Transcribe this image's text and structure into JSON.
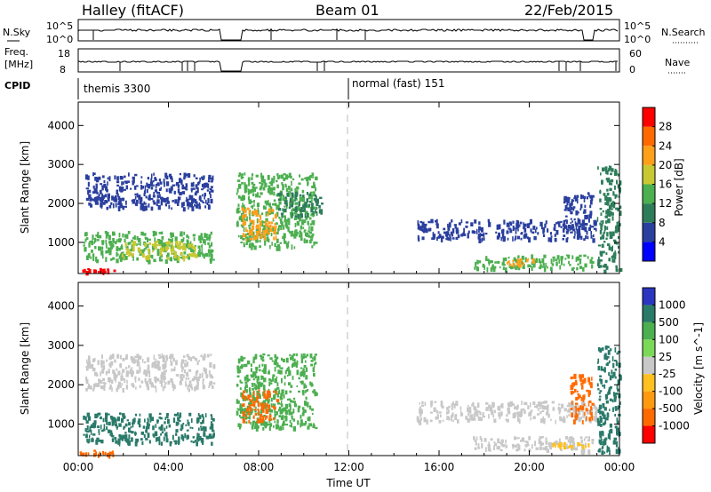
{
  "figure": {
    "station": "Halley (fitACF)",
    "beam": "Beam 01",
    "date": "22/Feb/2015",
    "time_label": "Time UT"
  },
  "header_panels": {
    "nsky": {
      "left_label": "N.Sky",
      "ticks": [
        "10^5",
        "10^0"
      ],
      "right_label": "N.Search"
    },
    "freq": {
      "left_label_line1": "Freq.",
      "left_label_line2": "[MHz]",
      "left_ticks": [
        "18",
        "8"
      ],
      "right_ticks": [
        "60",
        "0"
      ],
      "right_label": "Nave"
    },
    "cpid": {
      "label": "CPID",
      "entries": [
        {
          "text": "themis 3300"
        },
        {
          "text": "normal (fast) 151"
        }
      ]
    }
  },
  "chart_data": [
    {
      "type": "heatmap",
      "title": "",
      "xlabel": "Time UT",
      "ylabel": "Slant Range [km]",
      "x_ticks": [
        "00:00",
        "04:00",
        "08:00",
        "12:00",
        "16:00",
        "20:00",
        "00:00"
      ],
      "x_range_hours": [
        0,
        24
      ],
      "y_ticks": [
        1000,
        2000,
        3000,
        4000
      ],
      "ylim": [
        200,
        4600
      ],
      "colorbar": {
        "label": "Power [dB]",
        "ticks": [
          "4",
          "8",
          "12",
          "16",
          "20",
          "24",
          "28"
        ],
        "range": [
          0,
          32
        ],
        "colors": [
          "#0000ff",
          "#2a3f9e",
          "#2e7d5a",
          "#4caf50",
          "#c8c832",
          "#ff9f1a",
          "#ff6a00",
          "#ff0000"
        ]
      },
      "regions": [
        {
          "t": [
            0.0,
            1.6
          ],
          "r": [
            250,
            350
          ],
          "value": 30
        },
        {
          "t": [
            0.2,
            6.0
          ],
          "r": [
            550,
            1300
          ],
          "value": 12
        },
        {
          "t": [
            1.8,
            5.2
          ],
          "r": [
            620,
            1050
          ],
          "value": 18
        },
        {
          "t": [
            0.3,
            6.0
          ],
          "r": [
            1900,
            2800
          ],
          "value": 5
        },
        {
          "t": [
            7.0,
            10.5
          ],
          "r": [
            900,
            2800
          ],
          "value": 14
        },
        {
          "t": [
            7.2,
            8.8
          ],
          "r": [
            1100,
            1900
          ],
          "value": 20
        },
        {
          "t": [
            8.8,
            10.8
          ],
          "r": [
            1700,
            2300
          ],
          "value": 10
        },
        {
          "t": [
            15.0,
            23.0
          ],
          "r": [
            1100,
            1600
          ],
          "value": 5
        },
        {
          "t": [
            17.5,
            22.8
          ],
          "r": [
            350,
            700
          ],
          "value": 13
        },
        {
          "t": [
            19.0,
            20.5
          ],
          "r": [
            450,
            600
          ],
          "value": 20
        },
        {
          "t": [
            21.5,
            22.8
          ],
          "r": [
            1400,
            2300
          ],
          "value": 6
        },
        {
          "t": [
            23.0,
            24.0
          ],
          "r": [
            300,
            3000
          ],
          "value": 8
        }
      ]
    },
    {
      "type": "heatmap",
      "title": "",
      "xlabel": "Time UT",
      "ylabel": "Slant Range [km]",
      "x_ticks": [
        "00:00",
        "04:00",
        "08:00",
        "12:00",
        "16:00",
        "20:00",
        "00:00"
      ],
      "x_range_hours": [
        0,
        24
      ],
      "y_ticks": [
        1000,
        2000,
        3000,
        4000
      ],
      "ylim": [
        200,
        4600
      ],
      "colorbar": {
        "label": "Velocity [m s^-1]",
        "ticks": [
          "1000",
          "500",
          "100",
          "25",
          "-25",
          "-100",
          "-500",
          "-1000"
        ],
        "colors": [
          "#2b35c0",
          "#2a7a6a",
          "#4caf50",
          "#7cd957",
          "#c8c8c8",
          "#ffc020",
          "#ff9a10",
          "#ff6a00",
          "#ff0000"
        ]
      },
      "regions": [
        {
          "t": [
            0.0,
            1.6
          ],
          "r": [
            250,
            350
          ],
          "class": "-500"
        },
        {
          "t": [
            0.2,
            6.0
          ],
          "r": [
            550,
            1300
          ],
          "class": "500"
        },
        {
          "t": [
            0.3,
            6.0
          ],
          "r": [
            1900,
            2800
          ],
          "class": "25"
        },
        {
          "t": [
            7.0,
            10.5
          ],
          "r": [
            900,
            2800
          ],
          "class": "100"
        },
        {
          "t": [
            7.2,
            8.8
          ],
          "r": [
            1100,
            1900
          ],
          "class": "-500"
        },
        {
          "t": [
            15.0,
            23.0
          ],
          "r": [
            1100,
            1600
          ],
          "class": "25"
        },
        {
          "t": [
            17.5,
            22.8
          ],
          "r": [
            350,
            700
          ],
          "class": "25"
        },
        {
          "t": [
            21.0,
            22.6
          ],
          "r": [
            450,
            550
          ],
          "class": "-100"
        },
        {
          "t": [
            21.8,
            22.8
          ],
          "r": [
            1100,
            2300
          ],
          "class": "-500"
        },
        {
          "t": [
            23.0,
            24.0
          ],
          "r": [
            300,
            3000
          ],
          "class": "500"
        }
      ]
    }
  ]
}
